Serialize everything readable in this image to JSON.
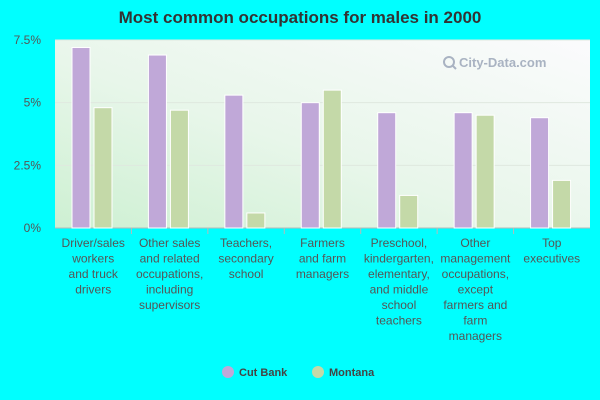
{
  "chart_data": {
    "type": "bar",
    "title": "Most common occupations for males in 2000",
    "categories": [
      [
        "Driver/sales",
        "workers",
        "and truck",
        "drivers"
      ],
      [
        "Other sales",
        "and related",
        "occupations,",
        "including",
        "supervisors"
      ],
      [
        "Teachers,",
        "secondary",
        "school"
      ],
      [
        "Farmers",
        "and farm",
        "managers"
      ],
      [
        "Preschool,",
        "kindergarten,",
        "elementary,",
        "and middle",
        "school",
        "teachers"
      ],
      [
        "Other",
        "management",
        "occupations,",
        "except",
        "farmers and",
        "farm",
        "managers"
      ],
      [
        "Top",
        "executives"
      ]
    ],
    "series": [
      {
        "name": "Cut Bank",
        "color": "#c0a8d8",
        "values": [
          7.2,
          6.9,
          5.3,
          5.0,
          4.6,
          4.6,
          4.4
        ]
      },
      {
        "name": "Montana",
        "color": "#c4d9a8",
        "values": [
          4.8,
          4.7,
          0.6,
          5.5,
          1.3,
          4.5,
          1.9
        ]
      }
    ],
    "ylim": [
      0,
      7.5
    ],
    "yticks": [
      0,
      2.5,
      5,
      7.5
    ],
    "ytick_labels": [
      "0%",
      "2.5%",
      "5%",
      "7.5%"
    ],
    "legend_position": "bottom",
    "grid": true,
    "watermark": "City-Data.com"
  }
}
